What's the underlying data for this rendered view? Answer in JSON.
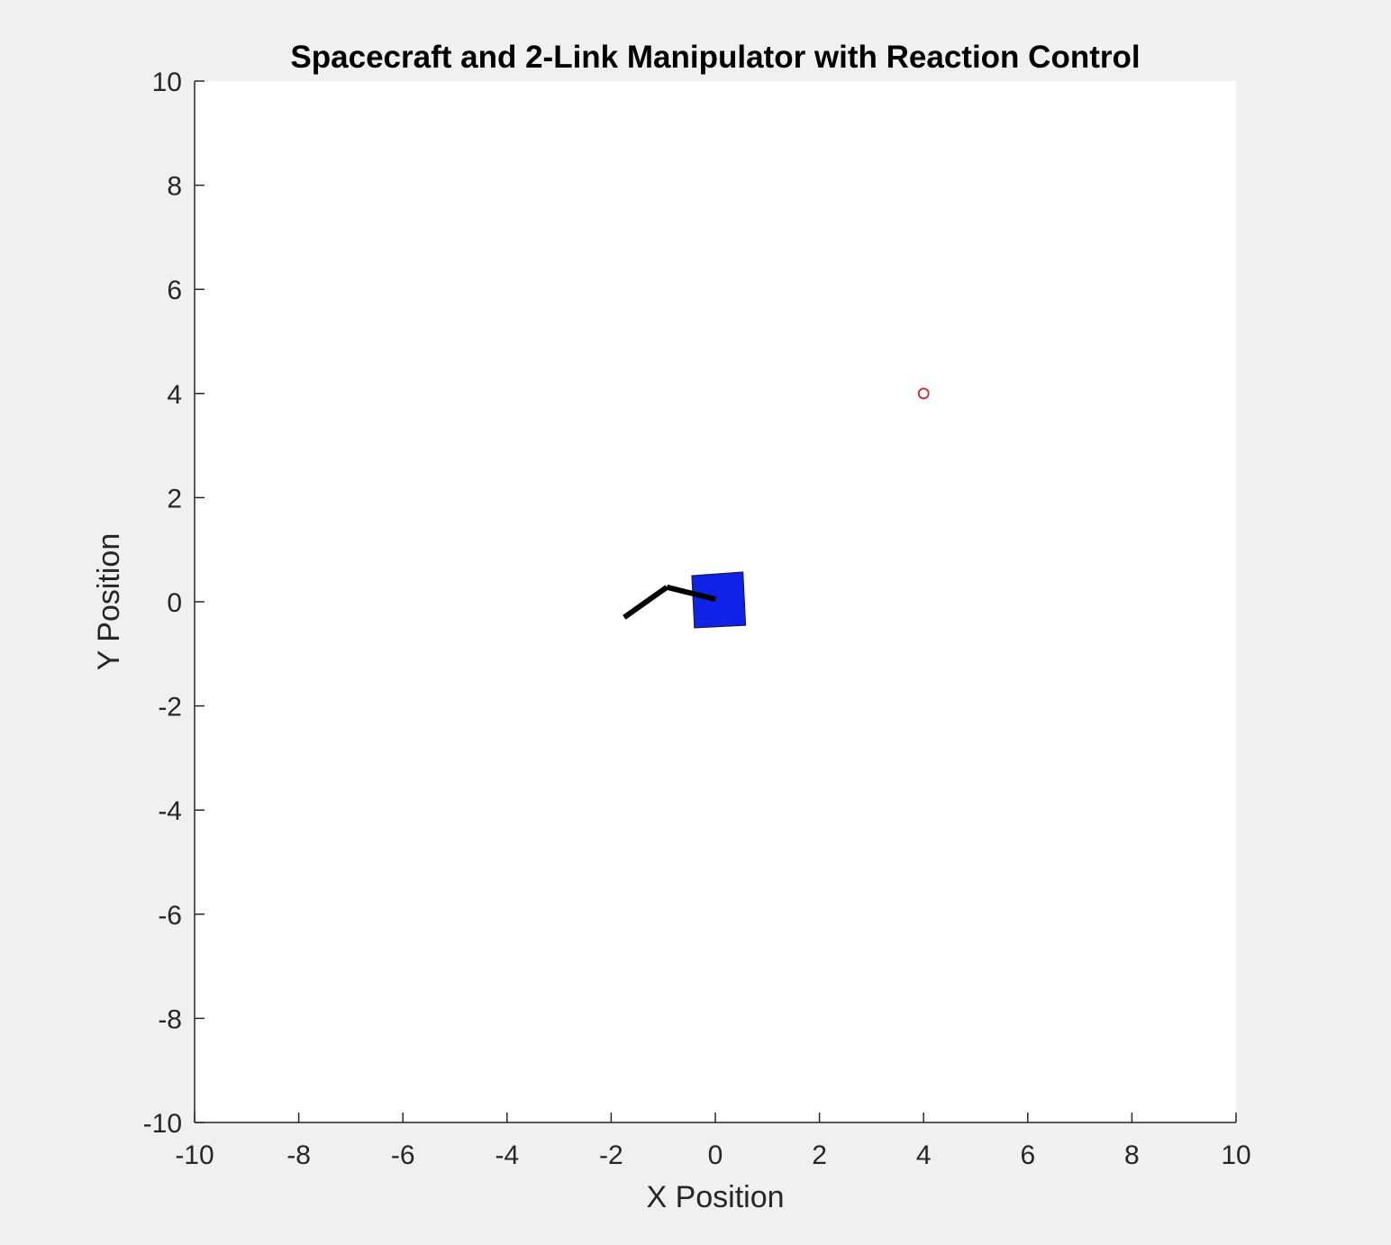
{
  "chart_data": {
    "type": "scatter",
    "title": "Spacecraft and 2-Link Manipulator with Reaction Control",
    "xlabel": "X Position",
    "ylabel": "Y Position",
    "xlim": [
      -10,
      10
    ],
    "ylim": [
      -10,
      10
    ],
    "xticks": [
      -10,
      -8,
      -6,
      -4,
      -2,
      0,
      2,
      4,
      6,
      8,
      10
    ],
    "yticks": [
      -10,
      -8,
      -6,
      -4,
      -2,
      0,
      2,
      4,
      6,
      8,
      10
    ],
    "xtick_labels": [
      "-10",
      "-8",
      "-6",
      "-4",
      "-2",
      "0",
      "2",
      "4",
      "6",
      "8",
      "10"
    ],
    "ytick_labels": [
      "-10",
      "-8",
      "-6",
      "-4",
      "-2",
      "0",
      "2",
      "4",
      "6",
      "8",
      "10"
    ],
    "grid": false,
    "spacecraft_body": {
      "corners": [
        [
          -0.45,
          0.5
        ],
        [
          0.53,
          0.57
        ],
        [
          0.58,
          -0.45
        ],
        [
          -0.4,
          -0.5
        ]
      ],
      "color": "#0f22e6"
    },
    "manipulator": {
      "points": [
        [
          0.0,
          0.05
        ],
        [
          -0.93,
          0.28
        ],
        [
          -1.75,
          -0.3
        ]
      ],
      "color": "#000000"
    },
    "target": {
      "x": 4.0,
      "y": 4.0,
      "color": "#d62424"
    }
  }
}
